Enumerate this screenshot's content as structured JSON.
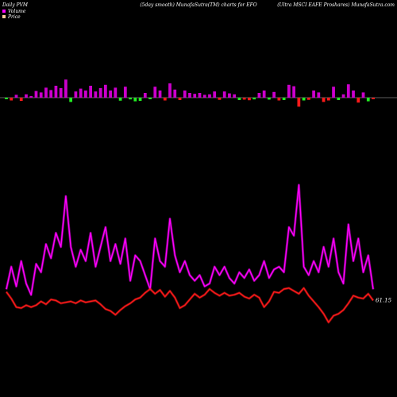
{
  "header": {
    "left": "Daily PVM",
    "middle": "(5day smooth) MunafaSutra(TM) charts for EFO",
    "right": "(Ultra  MSCI EAFE Proshares) MunafaSutra.com"
  },
  "legend": [
    {
      "label": "Volume",
      "color": "#ff00ff"
    },
    {
      "label": "Price",
      "color": "#ffcc99"
    }
  ],
  "last_value_label": "61.15",
  "colors": {
    "volume_line": "#ff00ff",
    "price_line": "#ff1a1a",
    "bar_up": "#cc00cc",
    "bar_down_red": "#ff1a1a",
    "bar_down_green": "#22ee22",
    "baseline": "#bbbbbb",
    "background": "#000000"
  },
  "chart_data": {
    "type": "line",
    "x": [
      1,
      2,
      3,
      4,
      5,
      6,
      7,
      8,
      9,
      10,
      11,
      12,
      13,
      14,
      15,
      16,
      17,
      18,
      19,
      20,
      21,
      22,
      23,
      24,
      25,
      26,
      27,
      28,
      29,
      30,
      31,
      32,
      33,
      34,
      35,
      36,
      37,
      38,
      39,
      40,
      41,
      42,
      43,
      44,
      45,
      46,
      47,
      48,
      49,
      50,
      51,
      52,
      53,
      54,
      55,
      56,
      57,
      58,
      59,
      60,
      61,
      62,
      63,
      64,
      65,
      66,
      67,
      68,
      69,
      70,
      71,
      72,
      73,
      74,
      75
    ],
    "series": [
      {
        "name": "Volume",
        "values": [
          30,
          38,
          31,
          40,
          32,
          28,
          39,
          36,
          46,
          41,
          50,
          45,
          63,
          45,
          38,
          44,
          40,
          50,
          38,
          45,
          52,
          40,
          46,
          39,
          48,
          33,
          42,
          40,
          35,
          30,
          48,
          40,
          38,
          55,
          42,
          36,
          40,
          35,
          33,
          35,
          31,
          32,
          38,
          35,
          38,
          34,
          32,
          36,
          34,
          37,
          33,
          35,
          40,
          34,
          37,
          38,
          36,
          52,
          49,
          67,
          38,
          35,
          40,
          36,
          45,
          38,
          48,
          36,
          32,
          53,
          40,
          48,
          36,
          42,
          30
        ],
        "bar_sign": [
          "d",
          "d",
          "u",
          "d",
          "u",
          "u",
          "u",
          "u",
          "u",
          "u",
          "u",
          "u",
          "u",
          "d",
          "u",
          "u",
          "u",
          "u",
          "u",
          "u",
          "u",
          "u",
          "u",
          "d",
          "u",
          "d",
          "d",
          "d",
          "u",
          "d",
          "u",
          "u",
          "d",
          "u",
          "u",
          "d",
          "u",
          "u",
          "u",
          "u",
          "u",
          "u",
          "u",
          "d",
          "u",
          "u",
          "u",
          "d",
          "d",
          "d",
          "d",
          "u",
          "u",
          "d",
          "u",
          "d",
          "d",
          "u",
          "u",
          "d",
          "d",
          "d",
          "u",
          "u",
          "d",
          "d",
          "u",
          "d",
          "u",
          "u",
          "u",
          "d",
          "u",
          "d",
          "d"
        ]
      },
      {
        "name": "Price",
        "values": [
          62.2,
          61.5,
          60.6,
          60.5,
          60.8,
          60.6,
          60.8,
          61.2,
          60.9,
          61.4,
          61.3,
          61.0,
          61.1,
          61.2,
          61.0,
          61.3,
          61.1,
          61.2,
          61.3,
          60.9,
          60.4,
          60.2,
          59.8,
          60.3,
          60.7,
          61.0,
          61.4,
          61.6,
          62.1,
          62.5,
          62.0,
          62.4,
          61.7,
          62.3,
          61.6,
          60.5,
          60.8,
          61.4,
          62.0,
          61.6,
          61.9,
          62.5,
          62.1,
          61.8,
          62.1,
          61.8,
          61.9,
          62.1,
          61.7,
          61.5,
          61.9,
          61.6,
          60.6,
          61.2,
          62.2,
          62.1,
          62.5,
          62.6,
          62.3,
          62.0,
          62.6,
          61.8,
          61.2,
          60.6,
          59.9,
          59.0,
          59.7,
          59.9,
          60.3,
          61.0,
          61.8,
          61.6,
          61.5,
          62.0,
          61.3
        ]
      }
    ],
    "note_axis": "no printed axes",
    "grid": false,
    "legend_position": "top-left"
  }
}
